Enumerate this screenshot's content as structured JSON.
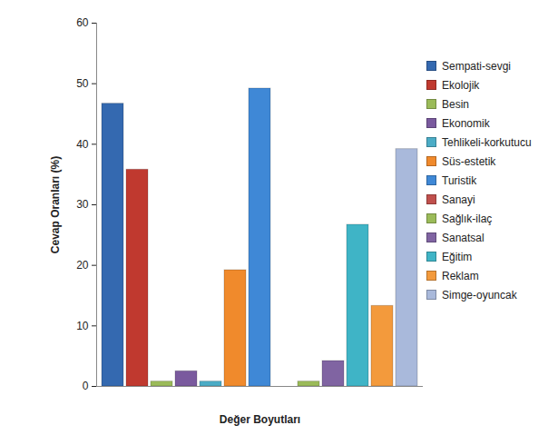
{
  "chart_data": {
    "type": "bar",
    "categories": [
      "Sempati-sevgi",
      "Ekolojik",
      "Besin",
      "Ekonomik",
      "Tehlikeli-korkutucu",
      "Süs-estetik",
      "Turistik",
      "Sanayi",
      "Sağlık-ilaç",
      "Sanatsal",
      "Eğitim",
      "Reklam",
      "Simge-oyuncak"
    ],
    "values": [
      46.7,
      35.8,
      0.8,
      2.5,
      0.8,
      19.2,
      49.2,
      0,
      0.8,
      4.2,
      26.7,
      13.3,
      39.2
    ],
    "colors": [
      "#3469b0",
      "#c0392f",
      "#9bbb59",
      "#7a5a9e",
      "#4bacc6",
      "#f08a2c",
      "#3f88d6",
      "#c0504d",
      "#9bbb59",
      "#8064a2",
      "#3fb4c6",
      "#f39a3c",
      "#a9b9db"
    ],
    "x_label": "Değer Boyutları",
    "y_label": "Cevap Oranları (%)",
    "ylim": [
      0,
      60
    ],
    "yticks": [
      0,
      10,
      20,
      30,
      40,
      50,
      60
    ],
    "grid": false,
    "legend": "right",
    "tick_labels": "y"
  }
}
